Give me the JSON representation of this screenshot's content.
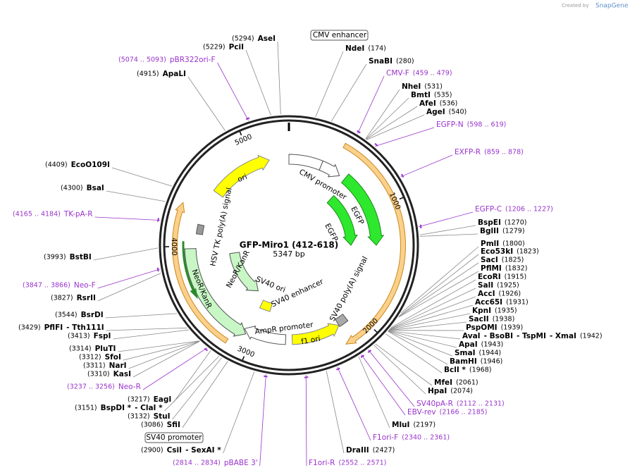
{
  "credit": {
    "created_by": "Created by",
    "brand": "SnapGene"
  },
  "map": {
    "name": "GFP-Miro1 (412-618)",
    "length": "5347 bp"
  },
  "ticks": [
    1000,
    2000,
    3000,
    4000,
    5000
  ],
  "features": [
    "CMV enhancer",
    "CMV promoter",
    "EGFP",
    "EGFP",
    "ori",
    "HSV TK poly(A) signal",
    "NeoR/KanR",
    "NeoR/KanR",
    "SV40 ori",
    "SV40 enhancer",
    "AmpR promoter",
    "f1 ori",
    "SV40 poly(A) signal",
    "SV40 promoter"
  ],
  "sites": [
    {
      "names": [
        "AseI"
      ],
      "position": "(5294)"
    },
    {
      "names": [
        "PciI"
      ],
      "position": "(5229)"
    },
    {
      "names": [
        "ApaLI"
      ],
      "position": "(4915)"
    },
    {
      "names": [
        "NdeI"
      ],
      "position": "(174)"
    },
    {
      "names": [
        "SnaBI"
      ],
      "position": "(280)"
    },
    {
      "names": [
        "NheI"
      ],
      "position": "(531)"
    },
    {
      "names": [
        "BmtI"
      ],
      "position": "(535)"
    },
    {
      "names": [
        "AfeI"
      ],
      "position": "(536)"
    },
    {
      "names": [
        "AgeI"
      ],
      "position": "(540)"
    },
    {
      "names": [
        "BspEI"
      ],
      "position": "(1270)"
    },
    {
      "names": [
        "BglII"
      ],
      "position": "(1279)"
    },
    {
      "names": [
        "PmlI"
      ],
      "position": "(1800)"
    },
    {
      "names": [
        "Eco53kI"
      ],
      "position": "(1823)"
    },
    {
      "names": [
        "SacI"
      ],
      "position": "(1825)"
    },
    {
      "names": [
        "PflMI"
      ],
      "position": "(1832)"
    },
    {
      "names": [
        "EcoRI"
      ],
      "position": "(1915)"
    },
    {
      "names": [
        "SalI"
      ],
      "position": "(1925)"
    },
    {
      "names": [
        "AccI"
      ],
      "position": "(1926)"
    },
    {
      "names": [
        "Acc65I"
      ],
      "position": "(1931)"
    },
    {
      "names": [
        "KpnI"
      ],
      "position": "(1935)"
    },
    {
      "names": [
        "SacII"
      ],
      "position": "(1938)"
    },
    {
      "names": [
        "PspOMI"
      ],
      "position": "(1939)"
    },
    {
      "names": [
        "AvaI",
        "- BsoBI",
        "- TspMI",
        "- XmaI"
      ],
      "position": "(1942)"
    },
    {
      "names": [
        "ApaI"
      ],
      "position": "(1943)"
    },
    {
      "names": [
        "SmaI"
      ],
      "position": "(1944)"
    },
    {
      "names": [
        "BamHI"
      ],
      "position": "(1946)"
    },
    {
      "names": [
        "BclI *"
      ],
      "position": "(1968)"
    },
    {
      "names": [
        "MfeI"
      ],
      "position": "(2061)"
    },
    {
      "names": [
        "HpaI"
      ],
      "position": "(2074)"
    },
    {
      "names": [
        "MluI"
      ],
      "position": "(2197)"
    },
    {
      "names": [
        "DraIII"
      ],
      "position": "(2427)"
    },
    {
      "names": [
        "CsiI",
        "- SexAI *"
      ],
      "position": "(2900)"
    },
    {
      "names": [
        "SfiI"
      ],
      "position": "(3086)"
    },
    {
      "names": [
        "StuI"
      ],
      "position": "(3132)"
    },
    {
      "names": [
        "BspDI *",
        "- ClaI *"
      ],
      "position": "(3151)"
    },
    {
      "names": [
        "EagI"
      ],
      "position": "(3217)"
    },
    {
      "names": [
        "KasI"
      ],
      "position": "(3310)"
    },
    {
      "names": [
        "NarI"
      ],
      "position": "(3311)"
    },
    {
      "names": [
        "SfoI"
      ],
      "position": "(3312)"
    },
    {
      "names": [
        "PluTI"
      ],
      "position": "(3314)"
    },
    {
      "names": [
        "FspI"
      ],
      "position": "(3413)"
    },
    {
      "names": [
        "PflFI",
        "- Tth111I"
      ],
      "position": "(3429)"
    },
    {
      "names": [
        "BsrDI"
      ],
      "position": "(3544)"
    },
    {
      "names": [
        "RsrII"
      ],
      "position": "(3827)"
    },
    {
      "names": [
        "BstBI"
      ],
      "position": "(3993)"
    },
    {
      "names": [
        "BsaI"
      ],
      "position": "(4300)"
    },
    {
      "names": [
        "EcoO109I"
      ],
      "position": "(4409)"
    }
  ],
  "primers": [
    {
      "name": "pBR322ori-F",
      "position": "(5074 .. 5093)"
    },
    {
      "name": "CMV-F",
      "position": "(459 .. 479)"
    },
    {
      "name": "EGFP-N",
      "position": "(598 .. 619)"
    },
    {
      "name": "EXFP-R",
      "position": "(859 .. 878)"
    },
    {
      "name": "EGFP-C",
      "position": "(1206 .. 1227)"
    },
    {
      "name": "SV40pA-R",
      "position": "(2112 .. 2131)"
    },
    {
      "name": "EBV-rev",
      "position": "(2166 .. 2185)"
    },
    {
      "name": "F1ori-F",
      "position": "(2340 .. 2361)"
    },
    {
      "name": "F1ori-R",
      "position": "(2552 .. 2571)"
    },
    {
      "name": "pBABE 3'",
      "position": "(2814 .. 2834)"
    },
    {
      "name": "Neo-R",
      "position": "(3237 .. 3256)"
    },
    {
      "name": "Neo-F",
      "position": "(3847 .. 3866)"
    },
    {
      "name": "TK-pA-R",
      "position": "(4165 .. 4184)"
    }
  ]
}
